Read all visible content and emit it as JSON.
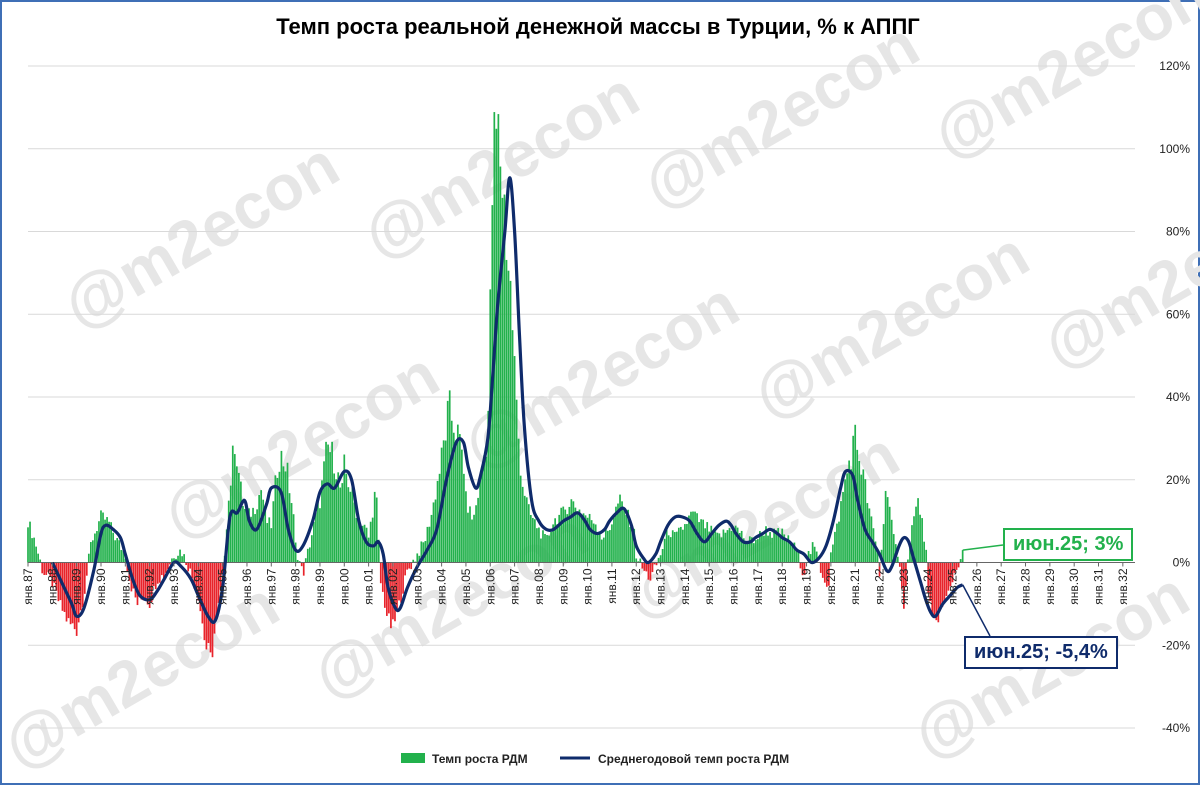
{
  "chart_data": {
    "type": "bar+line",
    "title": "Темп роста реальной денежной массы в Турции, % к АППГ",
    "y_axis": {
      "position": "right",
      "min": -40,
      "max": 120,
      "step": 20,
      "tick_suffix": "%",
      "tick_labels": [
        "-40%",
        "-20%",
        "0%",
        "20%",
        "40%",
        "60%",
        "80%",
        "100%",
        "120%"
      ]
    },
    "x_axis": {
      "tick_labels": [
        "янв.87",
        "янв.88",
        "янв.89",
        "янв.90",
        "янв.91",
        "янв.92",
        "янв.93",
        "янв.94",
        "янв.95",
        "янв.96",
        "янв.97",
        "янв.98",
        "янв.99",
        "янв.00",
        "янв.01",
        "янв.02",
        "янв.03",
        "янв.04",
        "янв.05",
        "янв.06",
        "янв.07",
        "янв.08",
        "янв.09",
        "янв.10",
        "янв.11",
        "янв.12",
        "янв.13",
        "янв.14",
        "янв.15",
        "янв.16",
        "янв.17",
        "янв.18",
        "янв.19",
        "янв.20",
        "янв.21",
        "янв.22",
        "янв.23",
        "янв.24",
        "янв.25",
        "янв.26",
        "янв.27",
        "янв.28",
        "янв.29",
        "янв.30",
        "янв.31",
        "янв.32"
      ],
      "start_year": 1987,
      "end_year": 2032
    },
    "bar_series": {
      "name": "Темп роста РДМ",
      "positive_color": "#22b14c",
      "negative_color": "#e8232b",
      "keypoints": [
        [
          1987.0,
          10
        ],
        [
          1987.3,
          5
        ],
        [
          1987.6,
          -2
        ],
        [
          1988.0,
          -5
        ],
        [
          1988.3,
          -10
        ],
        [
          1988.7,
          -15
        ],
        [
          1989.0,
          -16
        ],
        [
          1989.3,
          -8
        ],
        [
          1989.6,
          5
        ],
        [
          1990.0,
          11
        ],
        [
          1990.3,
          10
        ],
        [
          1990.6,
          6
        ],
        [
          1991.0,
          2
        ],
        [
          1991.2,
          -5
        ],
        [
          1991.5,
          -10
        ],
        [
          1991.8,
          -8
        ],
        [
          1992.0,
          -10
        ],
        [
          1992.3,
          -4
        ],
        [
          1992.6,
          -3
        ],
        [
          1993.0,
          2
        ],
        [
          1993.3,
          3
        ],
        [
          1993.6,
          -1
        ],
        [
          1994.0,
          -8
        ],
        [
          1994.3,
          -20
        ],
        [
          1994.5,
          -24
        ],
        [
          1994.8,
          -12
        ],
        [
          1995.0,
          -4
        ],
        [
          1995.2,
          12
        ],
        [
          1995.5,
          30
        ],
        [
          1995.8,
          15
        ],
        [
          1996.0,
          11
        ],
        [
          1996.3,
          13
        ],
        [
          1996.6,
          18
        ],
        [
          1996.8,
          10
        ],
        [
          1997.0,
          9
        ],
        [
          1997.3,
          26
        ],
        [
          1997.6,
          24
        ],
        [
          1997.9,
          12
        ],
        [
          1998.0,
          4
        ],
        [
          1998.3,
          -3
        ],
        [
          1998.6,
          5
        ],
        [
          1998.9,
          13
        ],
        [
          1999.0,
          15
        ],
        [
          1999.3,
          28
        ],
        [
          1999.6,
          25
        ],
        [
          1999.9,
          16
        ],
        [
          2000.0,
          23
        ],
        [
          2000.3,
          17
        ],
        [
          2000.6,
          10
        ],
        [
          2000.9,
          8
        ],
        [
          2001.0,
          6
        ],
        [
          2001.3,
          18
        ],
        [
          2001.5,
          -5
        ],
        [
          2001.8,
          -14
        ],
        [
          2002.0,
          -16
        ],
        [
          2002.3,
          -9
        ],
        [
          2002.6,
          -2
        ],
        [
          2003.0,
          2
        ],
        [
          2003.3,
          5
        ],
        [
          2003.6,
          12
        ],
        [
          2004.0,
          25
        ],
        [
          2004.3,
          37
        ],
        [
          2004.6,
          32
        ],
        [
          2004.9,
          25
        ],
        [
          2005.0,
          15
        ],
        [
          2005.3,
          10
        ],
        [
          2005.6,
          20
        ],
        [
          2005.9,
          32
        ],
        [
          2006.0,
          60
        ],
        [
          2006.1,
          95
        ],
        [
          2006.25,
          103
        ],
        [
          2006.4,
          100
        ],
        [
          2006.6,
          85
        ],
        [
          2006.9,
          60
        ],
        [
          2007.1,
          35
        ],
        [
          2007.3,
          20
        ],
        [
          2007.6,
          12
        ],
        [
          2008.0,
          8
        ],
        [
          2008.3,
          5
        ],
        [
          2008.6,
          10
        ],
        [
          2009.0,
          12
        ],
        [
          2009.3,
          15
        ],
        [
          2009.6,
          13
        ],
        [
          2010.0,
          11
        ],
        [
          2010.3,
          10
        ],
        [
          2010.6,
          6
        ],
        [
          2010.9,
          8
        ],
        [
          2011.0,
          10
        ],
        [
          2011.3,
          15
        ],
        [
          2011.6,
          12
        ],
        [
          2011.9,
          8
        ],
        [
          2012.0,
          2
        ],
        [
          2012.3,
          -2
        ],
        [
          2012.6,
          -4
        ],
        [
          2013.0,
          2
        ],
        [
          2013.3,
          8
        ],
        [
          2013.6,
          6
        ],
        [
          2014.0,
          9
        ],
        [
          2014.3,
          12
        ],
        [
          2014.6,
          10
        ],
        [
          2015.0,
          8
        ],
        [
          2015.3,
          6
        ],
        [
          2015.6,
          7
        ],
        [
          2016.0,
          9
        ],
        [
          2016.3,
          7
        ],
        [
          2016.6,
          5
        ],
        [
          2017.0,
          6
        ],
        [
          2017.3,
          8
        ],
        [
          2017.6,
          7
        ],
        [
          2018.0,
          7
        ],
        [
          2018.3,
          5
        ],
        [
          2018.6,
          3
        ],
        [
          2018.9,
          -3
        ],
        [
          2019.0,
          1
        ],
        [
          2019.3,
          4
        ],
        [
          2019.6,
          -2
        ],
        [
          2019.9,
          -6
        ],
        [
          2020.0,
          2
        ],
        [
          2020.3,
          10
        ],
        [
          2020.6,
          20
        ],
        [
          2020.9,
          28
        ],
        [
          2021.0,
          30
        ],
        [
          2021.3,
          22
        ],
        [
          2021.6,
          12
        ],
        [
          2021.9,
          3
        ],
        [
          2022.0,
          -3
        ],
        [
          2022.3,
          20
        ],
        [
          2022.6,
          5
        ],
        [
          2022.9,
          -4
        ],
        [
          2023.0,
          -10
        ],
        [
          2023.3,
          8
        ],
        [
          2023.6,
          15
        ],
        [
          2023.9,
          4
        ],
        [
          2024.0,
          -8
        ],
        [
          2024.2,
          -15
        ],
        [
          2024.5,
          -12
        ],
        [
          2024.8,
          -8
        ],
        [
          2025.0,
          -4
        ],
        [
          2025.2,
          -1
        ],
        [
          2025.42,
          3
        ]
      ],
      "last_label": "июн.25; 3%"
    },
    "line_series": {
      "name": "Среднегодовой темп роста РДМ",
      "color": "#0f2b6b",
      "points": [
        [
          1988.0,
          0
        ],
        [
          1988.4,
          -5
        ],
        [
          1988.8,
          -10
        ],
        [
          1989.0,
          -13
        ],
        [
          1989.3,
          -11
        ],
        [
          1989.7,
          -2
        ],
        [
          1990.0,
          7
        ],
        [
          1990.2,
          9
        ],
        [
          1990.5,
          8
        ],
        [
          1990.8,
          6
        ],
        [
          1991.0,
          2
        ],
        [
          1991.3,
          -4
        ],
        [
          1991.6,
          -8
        ],
        [
          1992.0,
          -9
        ],
        [
          1992.3,
          -7
        ],
        [
          1992.6,
          -4
        ],
        [
          1993.0,
          0
        ],
        [
          1993.3,
          -1
        ],
        [
          1993.7,
          -4
        ],
        [
          1994.0,
          -8
        ],
        [
          1994.4,
          -13
        ],
        [
          1994.7,
          -14
        ],
        [
          1995.0,
          -6
        ],
        [
          1995.3,
          11
        ],
        [
          1995.6,
          12
        ],
        [
          1995.9,
          15
        ],
        [
          1996.1,
          10
        ],
        [
          1996.4,
          8
        ],
        [
          1996.8,
          14
        ],
        [
          1997.0,
          18
        ],
        [
          1997.4,
          17
        ],
        [
          1997.7,
          8
        ],
        [
          1998.0,
          3
        ],
        [
          1998.3,
          4
        ],
        [
          1998.7,
          10
        ],
        [
          1999.0,
          17
        ],
        [
          1999.3,
          19
        ],
        [
          1999.6,
          18
        ],
        [
          2000.0,
          22
        ],
        [
          2000.3,
          20
        ],
        [
          2000.6,
          10
        ],
        [
          2000.9,
          5
        ],
        [
          2001.2,
          4
        ],
        [
          2001.4,
          5
        ],
        [
          2001.6,
          2
        ],
        [
          2001.8,
          -6
        ],
        [
          2002.1,
          -11
        ],
        [
          2002.3,
          -11
        ],
        [
          2002.6,
          -6
        ],
        [
          2003.0,
          -1
        ],
        [
          2003.4,
          3
        ],
        [
          2003.8,
          8
        ],
        [
          2004.2,
          20
        ],
        [
          2004.6,
          29
        ],
        [
          2004.9,
          29
        ],
        [
          2005.1,
          23
        ],
        [
          2005.4,
          18
        ],
        [
          2005.6,
          21
        ],
        [
          2005.9,
          30
        ],
        [
          2006.1,
          45
        ],
        [
          2006.3,
          62
        ],
        [
          2006.6,
          80
        ],
        [
          2006.8,
          93
        ],
        [
          2007.0,
          80
        ],
        [
          2007.2,
          55
        ],
        [
          2007.4,
          33
        ],
        [
          2007.7,
          15
        ],
        [
          2008.0,
          10
        ],
        [
          2008.3,
          8
        ],
        [
          2008.6,
          8
        ],
        [
          2009.0,
          10
        ],
        [
          2009.3,
          11
        ],
        [
          2009.6,
          12
        ],
        [
          2009.9,
          10
        ],
        [
          2010.1,
          8
        ],
        [
          2010.4,
          7
        ],
        [
          2010.7,
          8
        ],
        [
          2010.9,
          10
        ],
        [
          2011.2,
          12
        ],
        [
          2011.5,
          13
        ],
        [
          2011.8,
          9
        ],
        [
          2012.0,
          4
        ],
        [
          2012.3,
          1
        ],
        [
          2012.5,
          0
        ],
        [
          2012.8,
          2
        ],
        [
          2013.0,
          5
        ],
        [
          2013.3,
          9
        ],
        [
          2013.6,
          11
        ],
        [
          2013.9,
          11
        ],
        [
          2014.2,
          10
        ],
        [
          2014.5,
          7
        ],
        [
          2014.8,
          5
        ],
        [
          2015.1,
          7
        ],
        [
          2015.4,
          9
        ],
        [
          2015.7,
          10
        ],
        [
          2015.9,
          9
        ],
        [
          2016.1,
          7
        ],
        [
          2016.4,
          5
        ],
        [
          2016.7,
          5
        ],
        [
          2016.9,
          6
        ],
        [
          2017.2,
          7
        ],
        [
          2017.5,
          8
        ],
        [
          2017.8,
          7
        ],
        [
          2018.0,
          6
        ],
        [
          2018.3,
          5
        ],
        [
          2018.6,
          3
        ],
        [
          2018.9,
          2
        ],
        [
          2019.2,
          0
        ],
        [
          2019.5,
          1
        ],
        [
          2019.8,
          4
        ],
        [
          2020.1,
          10
        ],
        [
          2020.4,
          18
        ],
        [
          2020.6,
          22
        ],
        [
          2020.9,
          21
        ],
        [
          2021.1,
          15
        ],
        [
          2021.4,
          8
        ],
        [
          2021.7,
          5
        ],
        [
          2022.0,
          2
        ],
        [
          2022.3,
          -2
        ],
        [
          2022.5,
          -1
        ],
        [
          2022.8,
          4
        ],
        [
          2023.0,
          6
        ],
        [
          2023.2,
          5
        ],
        [
          2023.4,
          1
        ],
        [
          2023.7,
          -5
        ],
        [
          2023.9,
          -9
        ],
        [
          2024.1,
          -12
        ],
        [
          2024.3,
          -13
        ],
        [
          2024.6,
          -10
        ],
        [
          2024.9,
          -8
        ],
        [
          2025.2,
          -6
        ],
        [
          2025.42,
          -5.4
        ]
      ],
      "last_label": "июн.25; -5,4%"
    },
    "legend": {
      "position": "bottom",
      "items": [
        {
          "label": "Темп роста РДМ",
          "color": "#22b14c",
          "kind": "bar"
        },
        {
          "label": "Среднегодовой темп роста РДМ",
          "color": "#0f2b6b",
          "kind": "line"
        }
      ]
    },
    "watermark": "@m2econ",
    "grid": {
      "horizontal": true,
      "vertical": false
    }
  }
}
